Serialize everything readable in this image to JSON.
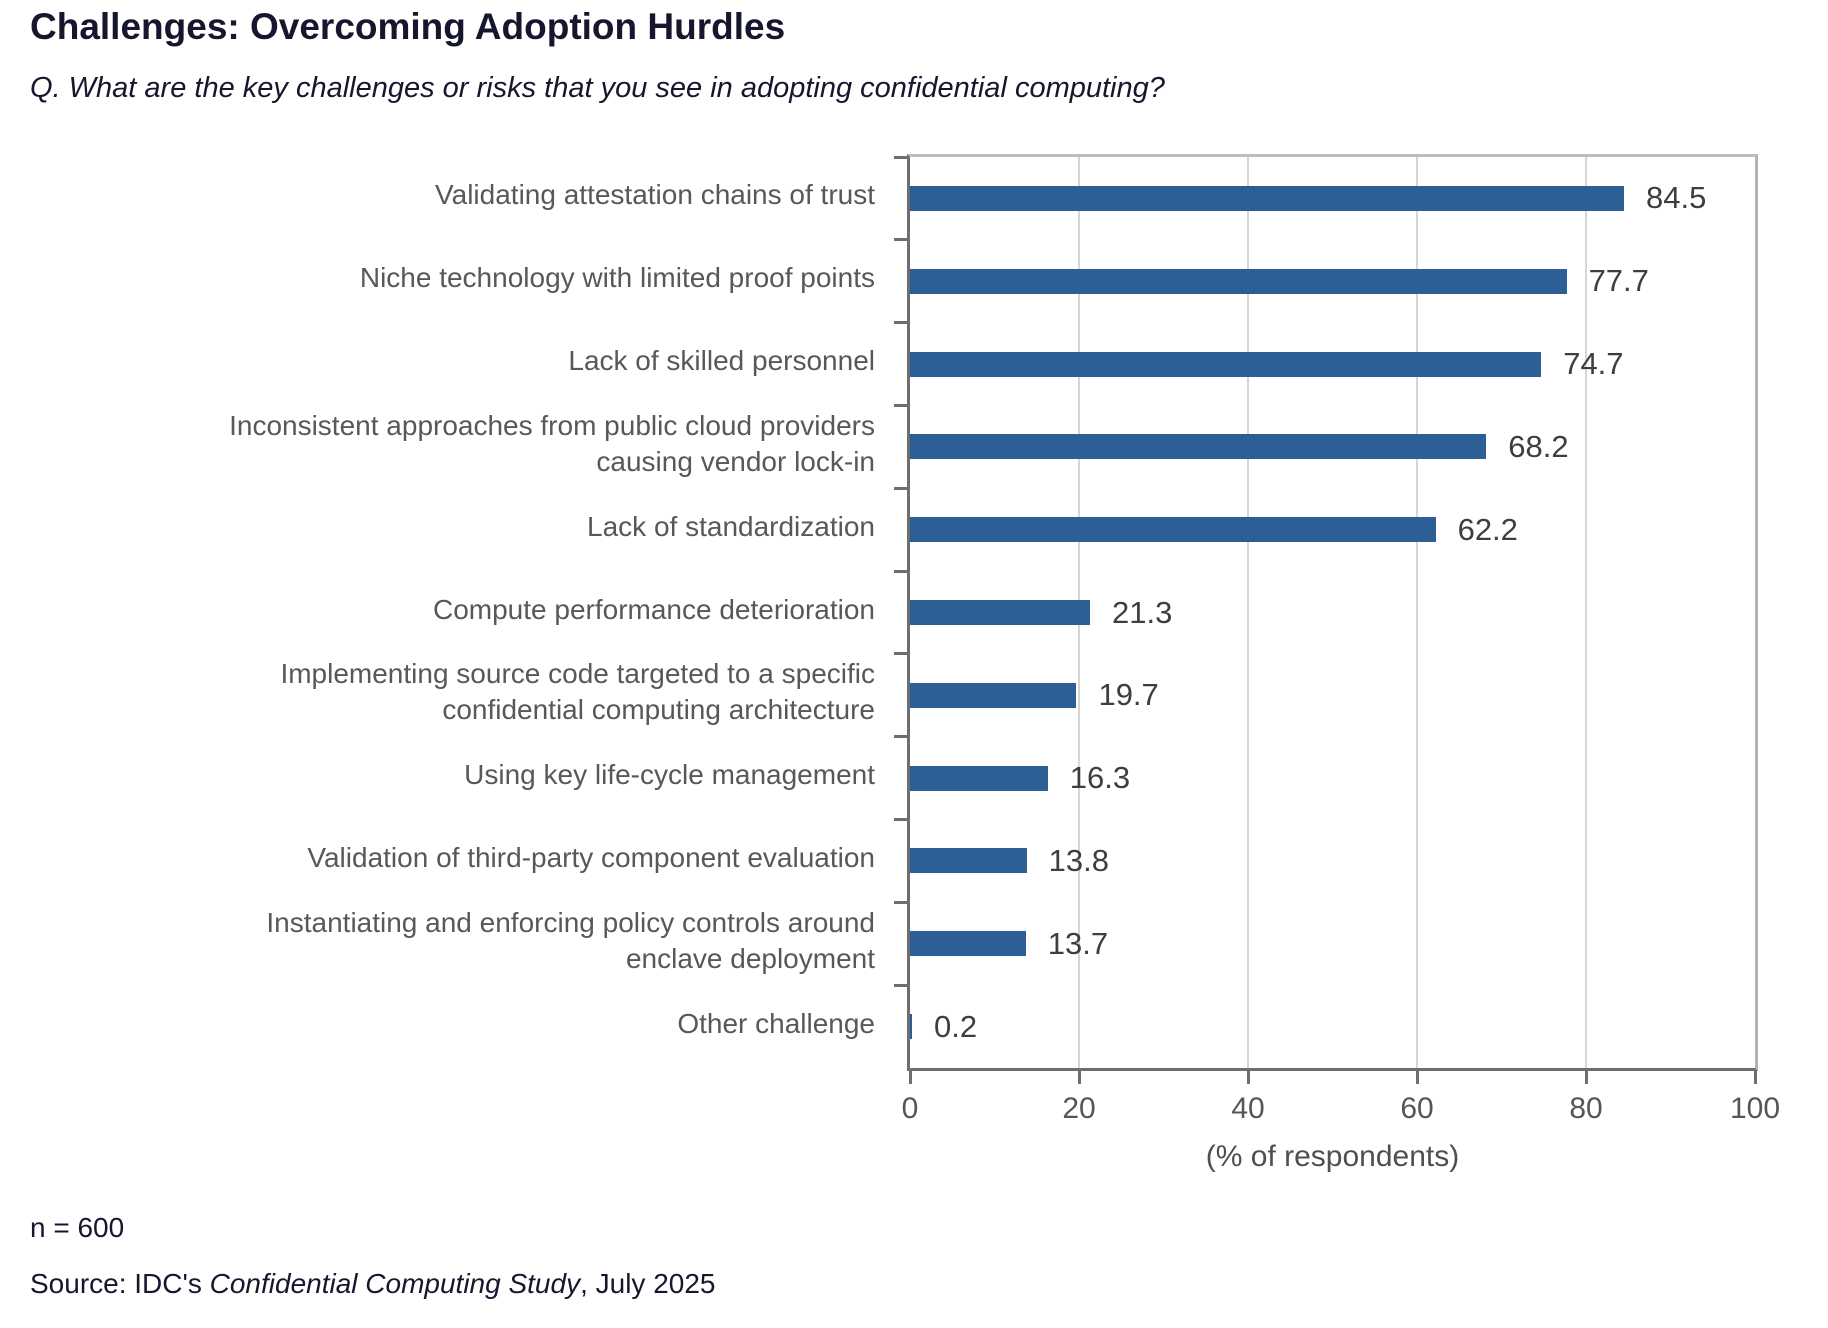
{
  "title": "Challenges: Overcoming Adoption Hurdles",
  "subtitle": "Q. What are the key challenges or risks that you see in adopting confidential computing?",
  "chart_data": {
    "type": "bar",
    "orientation": "horizontal",
    "title": "Challenges: Overcoming Adoption Hurdles",
    "categories": [
      "Validating attestation chains of trust",
      "Niche technology with limited proof points",
      "Lack of skilled personnel",
      "Inconsistent approaches from public cloud providers causing vendor lock-in",
      "Lack of standardization",
      "Compute performance deterioration",
      "Implementing source code targeted to a specific confidential computing architecture",
      "Using key life-cycle management",
      "Validation of third-party component evaluation",
      "Instantiating and enforcing policy controls around enclave deployment",
      "Other challenge"
    ],
    "category_lines": [
      [
        "Validating attestation chains of trust"
      ],
      [
        "Niche technology with limited proof points"
      ],
      [
        "Lack of skilled personnel"
      ],
      [
        "Inconsistent approaches from public cloud providers",
        "causing vendor lock-in"
      ],
      [
        "Lack of standardization"
      ],
      [
        "Compute performance deterioration"
      ],
      [
        "Implementing source code targeted to a specific",
        "confidential computing architecture"
      ],
      [
        "Using key life-cycle management"
      ],
      [
        "Validation of third-party component evaluation"
      ],
      [
        "Instantiating and enforcing policy controls around",
        "enclave deployment"
      ],
      [
        "Other challenge"
      ]
    ],
    "values": [
      84.5,
      77.7,
      74.7,
      68.2,
      62.2,
      21.3,
      19.7,
      16.3,
      13.8,
      13.7,
      0.2
    ],
    "value_labels": [
      "84.5",
      "77.7",
      "74.7",
      "68.2",
      "62.2",
      "21.3",
      "19.7",
      "16.3",
      "13.8",
      "13.7",
      "0.2"
    ],
    "xlabel": "(% of respondents)",
    "xlim": [
      0,
      100
    ],
    "xticks": [
      0,
      20,
      40,
      60,
      80,
      100
    ],
    "grid": true,
    "legend": "none",
    "bar_color": "#2d5f97"
  },
  "footer": {
    "sample_size": "n = 600",
    "source_prefix": "Source: IDC's ",
    "source_study": "Confidential Computing Study",
    "source_suffix": ", July 2025"
  }
}
